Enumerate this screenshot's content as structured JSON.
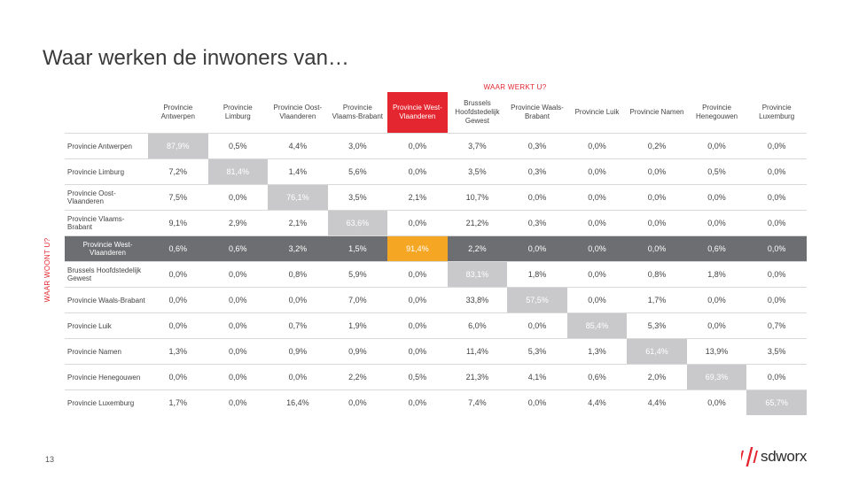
{
  "title": "Waar werken de inwoners van…",
  "column_group_label": "WAAR WERKT U?",
  "row_group_label": "WAAR WOONT U?",
  "page_number": "13",
  "logo_text": "sdworx",
  "colors": {
    "accent_red": "#e3262f",
    "highlight_row": "#6d6e71",
    "highlight_cell": "#f5a623",
    "diagonal": "#c9c9cb"
  },
  "chart_data": {
    "type": "table",
    "columns": [
      "Provincie Antwerpen",
      "Provincie Limburg",
      "Provincie Oost-Vlaanderen",
      "Provincie Vlaams-Brabant",
      "Provincie West-Vlaanderen",
      "Brussels Hoofdstedelijk Gewest",
      "Provincie Waals-Brabant",
      "Provincie Luik",
      "Provincie Namen",
      "Provincie Henegouwen",
      "Provincie Luxemburg"
    ],
    "highlight_column": 4,
    "highlight_row": 4,
    "rows": [
      {
        "label": "Provincie Antwerpen",
        "values": [
          "87,9%",
          "0,5%",
          "4,4%",
          "3,0%",
          "0,0%",
          "3,7%",
          "0,3%",
          "0,0%",
          "0,2%",
          "0,0%",
          "0,0%"
        ]
      },
      {
        "label": "Provincie Limburg",
        "values": [
          "7,2%",
          "81,4%",
          "1,4%",
          "5,6%",
          "0,0%",
          "3,5%",
          "0,3%",
          "0,0%",
          "0,0%",
          "0,5%",
          "0,0%"
        ]
      },
      {
        "label": "Provincie Oost-Vlaanderen",
        "values": [
          "7,5%",
          "0,0%",
          "76,1%",
          "3,5%",
          "2,1%",
          "10,7%",
          "0,0%",
          "0,0%",
          "0,0%",
          "0,0%",
          "0,0%"
        ]
      },
      {
        "label": "Provincie Vlaams-Brabant",
        "values": [
          "9,1%",
          "2,9%",
          "2,1%",
          "63,6%",
          "0,0%",
          "21,2%",
          "0,3%",
          "0,0%",
          "0,0%",
          "0,0%",
          "0,0%"
        ]
      },
      {
        "label": "Provincie West-Vlaanderen",
        "values": [
          "0,6%",
          "0,6%",
          "3,2%",
          "1,5%",
          "91,4%",
          "2,2%",
          "0,0%",
          "0,0%",
          "0,0%",
          "0,6%",
          "0,0%"
        ]
      },
      {
        "label": "Brussels Hoofdstedelijk Gewest",
        "values": [
          "0,0%",
          "0,0%",
          "0,8%",
          "5,9%",
          "0,0%",
          "83,1%",
          "1,8%",
          "0,0%",
          "0,8%",
          "1,8%",
          "0,0%"
        ]
      },
      {
        "label": "Provincie Waals-Brabant",
        "values": [
          "0,0%",
          "0,0%",
          "0,0%",
          "7,0%",
          "0,0%",
          "33,8%",
          "57,5%",
          "0,0%",
          "1,7%",
          "0,0%",
          "0,0%"
        ]
      },
      {
        "label": "Provincie Luik",
        "values": [
          "0,0%",
          "0,0%",
          "0,7%",
          "1,9%",
          "0,0%",
          "6,0%",
          "0,0%",
          "85,4%",
          "5,3%",
          "0,0%",
          "0,7%"
        ]
      },
      {
        "label": "Provincie Namen",
        "values": [
          "1,3%",
          "0,0%",
          "0,9%",
          "0,9%",
          "0,0%",
          "11,4%",
          "5,3%",
          "1,3%",
          "61,4%",
          "13,9%",
          "3,5%"
        ]
      },
      {
        "label": "Provincie Henegouwen",
        "values": [
          "0,0%",
          "0,0%",
          "0,0%",
          "2,2%",
          "0,5%",
          "21,3%",
          "4,1%",
          "0,6%",
          "2,0%",
          "69,3%",
          "0,0%"
        ]
      },
      {
        "label": "Provincie Luxemburg",
        "values": [
          "1,7%",
          "0,0%",
          "16,4%",
          "0,0%",
          "0,0%",
          "7,4%",
          "0,0%",
          "4,4%",
          "4,4%",
          "0,0%",
          "65,7%"
        ]
      }
    ]
  }
}
